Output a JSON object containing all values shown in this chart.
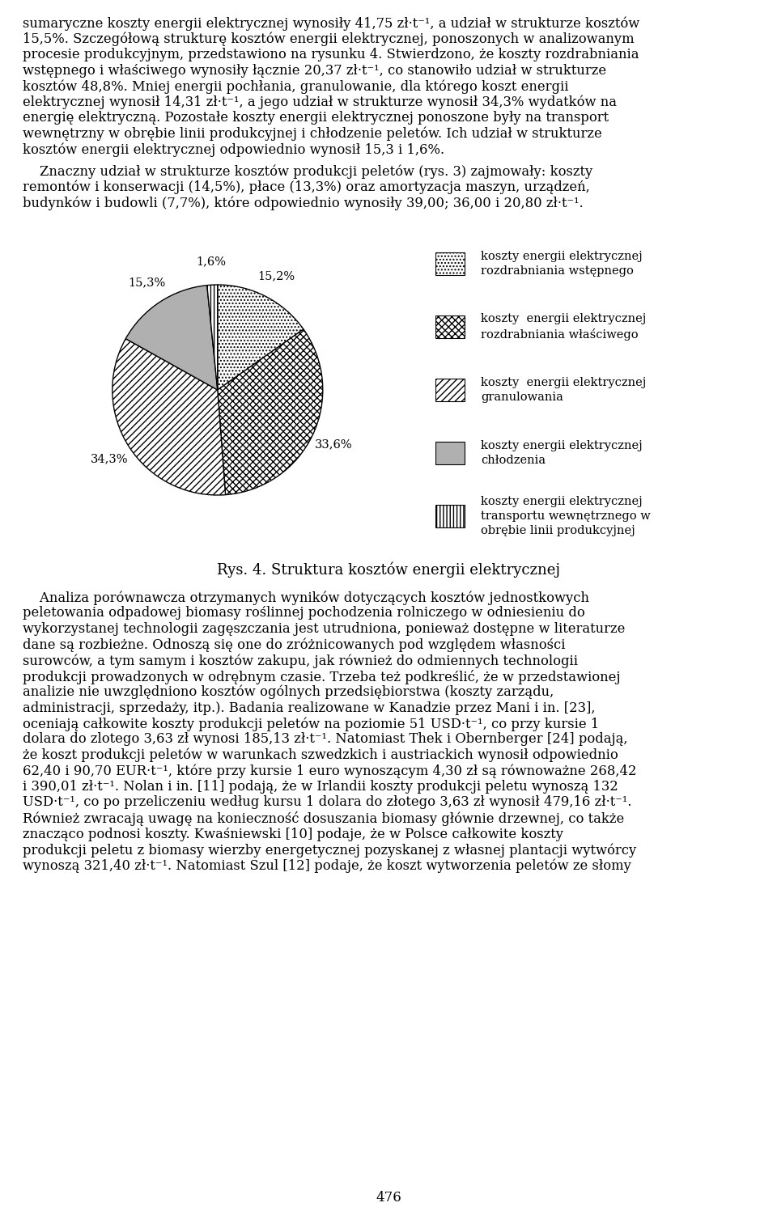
{
  "pie_values": [
    15.2,
    33.6,
    34.3,
    15.3,
    1.6
  ],
  "pie_labels": [
    "15,2%",
    "33,6%",
    "34,3%",
    "15,3%",
    "1,6%"
  ],
  "legend_labels": [
    "koszty energii elektrycznej\nrozdrabniania wstępnego",
    "koszty  energii elektrycznej\nrozdrabniania właściwego",
    "koszty  energii elektrycznej\ngranulowania",
    "koszty energii elektrycznej\nchłodzenia",
    "koszty energii elektrycznej\ntransportu wewnętrznego w\nobrębie linii produkcyjnej"
  ],
  "caption": "Rys. 4. Struktura kosztów energii elektrycznej",
  "page_number": "476",
  "bg_color": "#ffffff",
  "text_color": "#000000",
  "hatches": [
    "..",
    "xx",
    "////",
    "",
    "||"
  ],
  "face_colors": [
    "white",
    "white",
    "white",
    "#b0b0b0",
    "white"
  ],
  "label_r": 1.22
}
